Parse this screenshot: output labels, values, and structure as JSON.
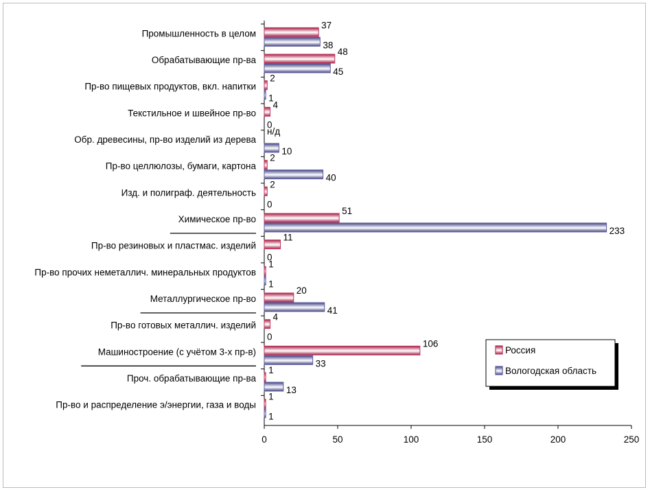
{
  "chart_data": {
    "type": "bar",
    "orientation": "horizontal",
    "categories": [
      "Промышленность в целом",
      "Обрабатывающие пр-ва",
      "Пр-во пищевых продуктов, вкл. напитки",
      "Текстильное и швейное пр-во",
      "Обр. древесины, пр-во изделий из дерева",
      "Пр-во целлюлозы, бумаги, картона",
      "Изд. и полиграф. деятельность",
      "Химическое пр-во",
      "Пр-во резиновых и пластмас. изделий",
      "Пр-во прочих неметаллич. минеральных продуктов",
      "Металлургическое пр-во",
      "Пр-во готовых металлич. изделий",
      "Машиностроение (с учётом 3-х пр-в)",
      "Проч. обрабатывающие пр-ва",
      "Пр-во и распределение э/энергии, газа и воды"
    ],
    "underlined_categories": [
      7,
      10,
      12
    ],
    "series": [
      {
        "name": "Россия",
        "color": "#c0335a",
        "values": [
          37,
          48,
          2,
          4,
          null,
          2,
          2,
          51,
          11,
          1,
          20,
          4,
          106,
          1,
          1
        ],
        "labels": [
          "37",
          "48",
          "2",
          "4",
          "н/д",
          "2",
          "2",
          "51",
          "11",
          "1",
          "20",
          "4",
          "106",
          "1",
          "1"
        ]
      },
      {
        "name": "Вологодская область",
        "color": "#5c5c9e",
        "values": [
          38,
          45,
          1,
          0,
          10,
          40,
          0,
          233,
          0,
          1,
          41,
          0,
          33,
          13,
          1
        ],
        "labels": [
          "38",
          "45",
          "1",
          "0",
          "10",
          "40",
          "0",
          "233",
          "0",
          "1",
          "41",
          "0",
          "33",
          "13",
          "1"
        ]
      }
    ],
    "xlim": [
      0,
      250
    ],
    "xticks": [
      "0",
      "50",
      "100",
      "150",
      "200",
      "250"
    ],
    "xtick_values": [
      0,
      50,
      100,
      150,
      200,
      250
    ],
    "legend": {
      "position": "right",
      "entries": [
        "Россия",
        "Вологодская область"
      ]
    },
    "title": "",
    "xlabel": "",
    "ylabel": ""
  }
}
